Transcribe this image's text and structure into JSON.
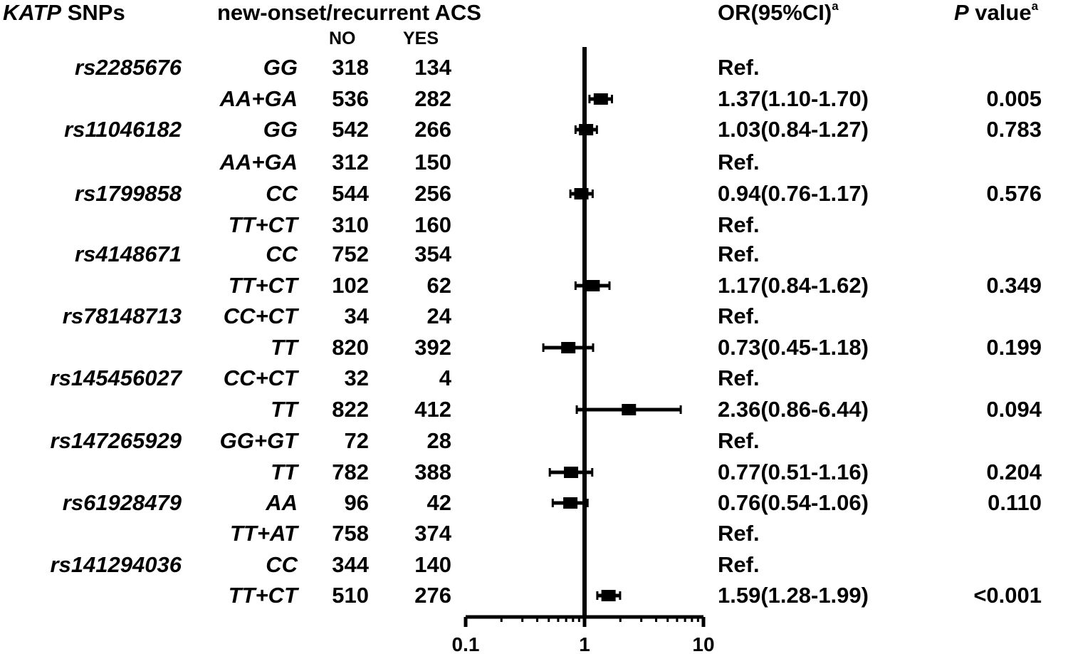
{
  "header": {
    "snp_label_italic": "KATP",
    "snp_label_rest": " SNPs",
    "group_title": "new-onset/recurrent ACS",
    "col_no": "NO",
    "col_yes": "YES",
    "or_label": "OR(95%CI)",
    "or_sup": "a",
    "p_label_italic": "P",
    "p_label_rest": " value",
    "p_sup": "a"
  },
  "rows": [
    {
      "snp": "rs2285676",
      "genotype": "GG",
      "no": "318",
      "yes": "134",
      "or_text": "Ref.",
      "p": ""
    },
    {
      "snp": "",
      "genotype": "AA+GA",
      "no": "536",
      "yes": "282",
      "or_text": "1.37(1.10-1.70)",
      "p": "0.005"
    },
    {
      "snp": "rs11046182",
      "genotype": "GG",
      "no": "542",
      "yes": "266",
      "or_text": "1.03(0.84-1.27)",
      "p": "0.783"
    },
    {
      "snp": "",
      "genotype": "AA+GA",
      "no": "312",
      "yes": "150",
      "or_text": "Ref.",
      "p": ""
    },
    {
      "snp": "rs1799858",
      "genotype": "CC",
      "no": "544",
      "yes": "256",
      "or_text": "0.94(0.76-1.17)",
      "p": "0.576"
    },
    {
      "snp": "",
      "genotype": "TT+CT",
      "no": "310",
      "yes": "160",
      "or_text": "Ref.",
      "p": ""
    },
    {
      "snp": "rs4148671",
      "genotype": "CC",
      "no": "752",
      "yes": "354",
      "or_text": "Ref.",
      "p": ""
    },
    {
      "snp": "",
      "genotype": "TT+CT",
      "no": "102",
      "yes": "62",
      "or_text": "1.17(0.84-1.62)",
      "p": "0.349"
    },
    {
      "snp": "rs78148713",
      "genotype": "CC+CT",
      "no": "34",
      "yes": "24",
      "or_text": "Ref.",
      "p": ""
    },
    {
      "snp": "",
      "genotype": "TT",
      "no": "820",
      "yes": "392",
      "or_text": "0.73(0.45-1.18)",
      "p": "0.199"
    },
    {
      "snp": "rs145456027",
      "genotype": "CC+CT",
      "no": "32",
      "yes": "4",
      "or_text": "Ref.",
      "p": ""
    },
    {
      "snp": "",
      "genotype": "TT",
      "no": "822",
      "yes": "412",
      "or_text": "2.36(0.86-6.44)",
      "p": "0.094"
    },
    {
      "snp": "rs147265929",
      "genotype": "GG+GT",
      "no": "72",
      "yes": "28",
      "or_text": "Ref.",
      "p": ""
    },
    {
      "snp": "",
      "genotype": "TT",
      "no": "782",
      "yes": "388",
      "or_text": "0.77(0.51-1.16)",
      "p": "0.204"
    },
    {
      "snp": "rs61928479",
      "genotype": "AA",
      "no": "96",
      "yes": "42",
      "or_text": "0.76(0.54-1.06)",
      "p": "0.110"
    },
    {
      "snp": "",
      "genotype": "TT+AT",
      "no": "758",
      "yes": "374",
      "or_text": "Ref.",
      "p": ""
    },
    {
      "snp": "rs141294036",
      "genotype": "CC",
      "no": "344",
      "yes": "140",
      "or_text": "Ref.",
      "p": ""
    },
    {
      "snp": "",
      "genotype": "TT+CT",
      "no": "510",
      "yes": "276",
      "or_text": "1.59(1.28-1.99)",
      "p": "<0.001"
    }
  ],
  "chart_data": {
    "type": "forest",
    "x_scale": "log",
    "xlim": [
      0.1,
      10
    ],
    "xticks": [
      "0.1",
      "1",
      "10"
    ],
    "reference_line": 1,
    "grid": false,
    "points": [
      {
        "or": null,
        "low": null,
        "high": null
      },
      {
        "or": 1.37,
        "low": 1.1,
        "high": 1.7
      },
      {
        "or": 1.03,
        "low": 0.84,
        "high": 1.27
      },
      {
        "or": null,
        "low": null,
        "high": null
      },
      {
        "or": 0.94,
        "low": 0.76,
        "high": 1.17
      },
      {
        "or": null,
        "low": null,
        "high": null
      },
      {
        "or": null,
        "low": null,
        "high": null
      },
      {
        "or": 1.17,
        "low": 0.84,
        "high": 1.62
      },
      {
        "or": null,
        "low": null,
        "high": null
      },
      {
        "or": 0.73,
        "low": 0.45,
        "high": 1.18
      },
      {
        "or": null,
        "low": null,
        "high": null
      },
      {
        "or": 2.36,
        "low": 0.86,
        "high": 6.44
      },
      {
        "or": null,
        "low": null,
        "high": null
      },
      {
        "or": 0.77,
        "low": 0.51,
        "high": 1.16
      },
      {
        "or": 0.76,
        "low": 0.54,
        "high": 1.06
      },
      {
        "or": null,
        "low": null,
        "high": null
      },
      {
        "or": null,
        "low": null,
        "high": null
      },
      {
        "or": 1.59,
        "low": 1.28,
        "high": 1.99
      }
    ]
  }
}
